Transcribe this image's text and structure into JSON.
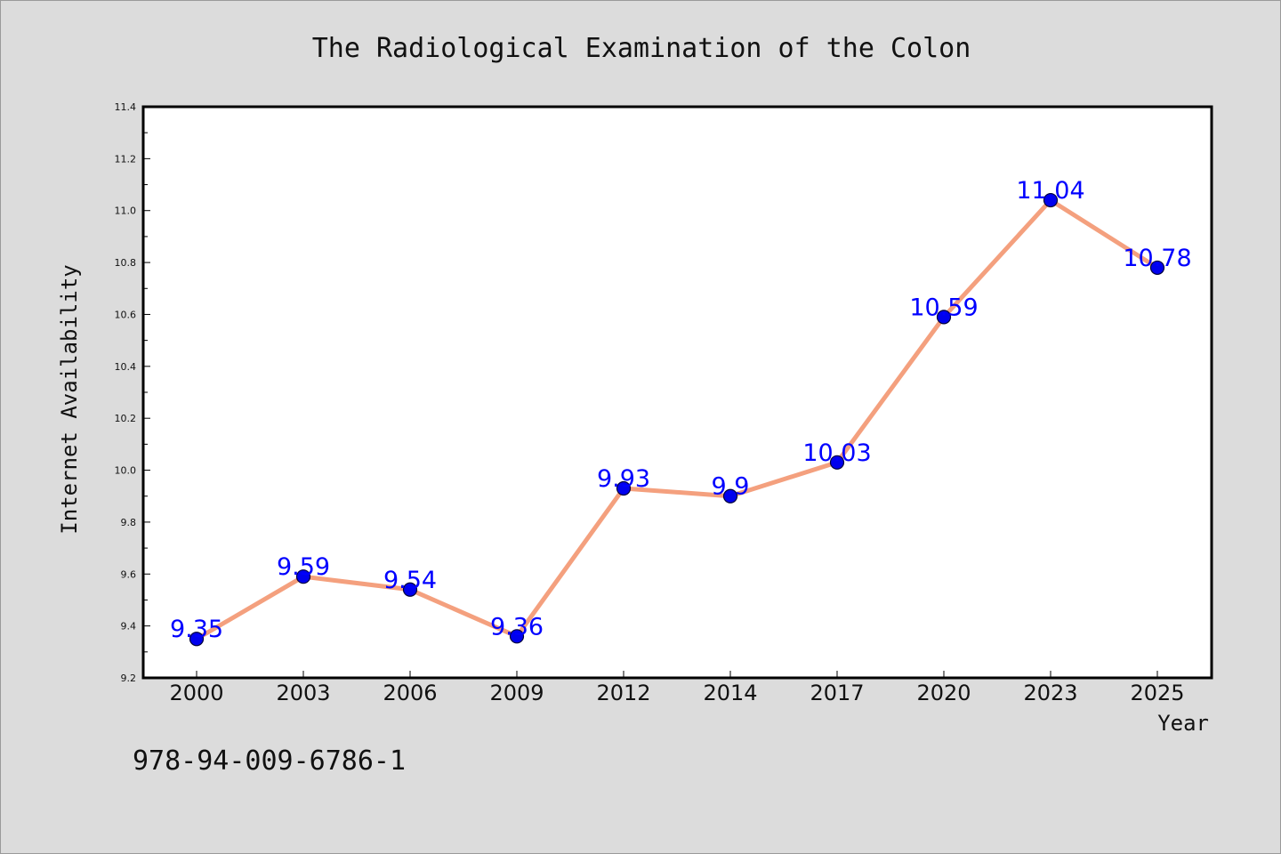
{
  "chart_data": {
    "type": "line",
    "title": "The Radiological Examination of the Colon",
    "xlabel": "Year",
    "ylabel": "Internet Availability",
    "categories": [
      "2000",
      "2003",
      "2006",
      "2009",
      "2012",
      "2014",
      "2017",
      "2020",
      "2023",
      "2025"
    ],
    "series": [
      {
        "values": [
          9.35,
          9.59,
          9.54,
          9.36,
          9.93,
          9.9,
          10.03,
          10.59,
          11.04,
          10.78
        ],
        "labels": [
          "9.35",
          "9.59",
          "9.54",
          "9.36",
          "9.93",
          "9.9",
          "10.03",
          "10.59",
          "11.04",
          "10.78"
        ]
      }
    ],
    "ylim": [
      9.2,
      11.4
    ],
    "yticks": [
      "9.2",
      "9.4",
      "9.6",
      "9.8",
      "10.0",
      "10.2",
      "10.4",
      "10.6",
      "10.8",
      "11.0",
      "11.2",
      "11.4"
    ],
    "grid": false,
    "legend": "none",
    "colors": {
      "line": "#f4a07e",
      "marker": "#0000ee",
      "marker_edge": "#00003a",
      "data_label": "#0000ff",
      "background": "#dcdcdc",
      "plot_background": "#ffffff"
    }
  },
  "footer": {
    "identifier": "978-94-009-6786-1"
  }
}
